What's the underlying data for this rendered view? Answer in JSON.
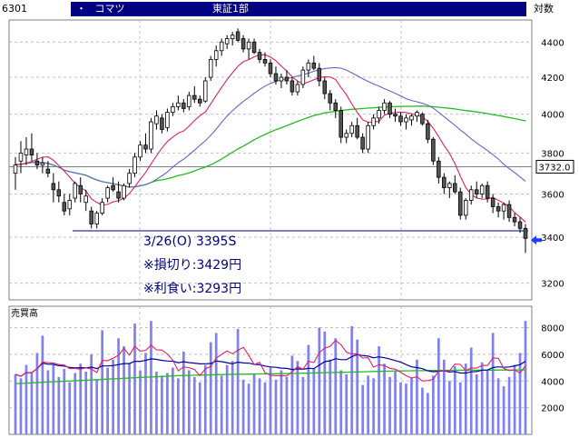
{
  "header": {
    "code": "6301",
    "bullet": "・",
    "name": "コマツ",
    "market": "東証1部",
    "scale": "対数"
  },
  "price_panel": {
    "current_price_label": "3732.0",
    "annotation_lines": [
      "3/26(O) 3395S",
      "※損切り:3429円",
      "※利食い:3293円"
    ]
  },
  "volume_panel": {
    "title": "売買高"
  },
  "colors": {
    "ma_short": "#e0206a",
    "ma_mid": "#6464c8",
    "ma_long": "#22bb22",
    "support": "#000080",
    "arrow": "#1c3cff",
    "volume_bar": "#8080f0",
    "vol_ma_short": "#e0206a",
    "vol_ma_mid": "#0000a0",
    "vol_ma_long": "#22bb22"
  },
  "chart_data": [
    {
      "type": "candlestick",
      "title": "",
      "yscale": "log",
      "ylim": [
        3130,
        4530
      ],
      "yticks": [
        3200,
        3400,
        3600,
        3800,
        4000,
        4200,
        4400
      ],
      "support_level": 3429,
      "current_price": 3732,
      "entry_price": 3395,
      "ohlc": [
        [
          3700,
          3780,
          3620,
          3740
        ],
        [
          3760,
          3860,
          3700,
          3800
        ],
        [
          3790,
          3880,
          3740,
          3820
        ],
        [
          3820,
          3900,
          3760,
          3790
        ],
        [
          3760,
          3800,
          3720,
          3740
        ],
        [
          3740,
          3780,
          3700,
          3750
        ],
        [
          3720,
          3760,
          3680,
          3700
        ],
        [
          3650,
          3700,
          3560,
          3620
        ],
        [
          3620,
          3660,
          3560,
          3590
        ],
        [
          3560,
          3600,
          3500,
          3520
        ],
        [
          3530,
          3600,
          3500,
          3570
        ],
        [
          3580,
          3660,
          3560,
          3650
        ],
        [
          3640,
          3680,
          3560,
          3600
        ],
        [
          3560,
          3620,
          3520,
          3590
        ],
        [
          3520,
          3540,
          3440,
          3460
        ],
        [
          3460,
          3520,
          3440,
          3510
        ],
        [
          3510,
          3580,
          3500,
          3560
        ],
        [
          3580,
          3640,
          3560,
          3630
        ],
        [
          3640,
          3680,
          3610,
          3620
        ],
        [
          3610,
          3660,
          3560,
          3580
        ],
        [
          3580,
          3650,
          3570,
          3640
        ],
        [
          3650,
          3720,
          3630,
          3700
        ],
        [
          3700,
          3800,
          3680,
          3780
        ],
        [
          3780,
          3860,
          3760,
          3840
        ],
        [
          3840,
          3900,
          3800,
          3820
        ],
        [
          3820,
          3980,
          3800,
          3960
        ],
        [
          3950,
          4020,
          3920,
          3990
        ],
        [
          3980,
          4000,
          3900,
          3920
        ],
        [
          3930,
          4030,
          3910,
          4010
        ],
        [
          4010,
          4060,
          3990,
          4040
        ],
        [
          4040,
          4100,
          4020,
          4060
        ],
        [
          4060,
          4080,
          4010,
          4030
        ],
        [
          4040,
          4120,
          4020,
          4100
        ],
        [
          4100,
          4150,
          4060,
          4080
        ],
        [
          4080,
          4100,
          4040,
          4060
        ],
        [
          4070,
          4200,
          4060,
          4180
        ],
        [
          4200,
          4320,
          4180,
          4300
        ],
        [
          4300,
          4380,
          4260,
          4350
        ],
        [
          4350,
          4420,
          4320,
          4400
        ],
        [
          4390,
          4440,
          4360,
          4420
        ],
        [
          4420,
          4460,
          4380,
          4440
        ],
        [
          4460,
          4480,
          4400,
          4410
        ],
        [
          4420,
          4440,
          4340,
          4360
        ],
        [
          4360,
          4420,
          4300,
          4400
        ],
        [
          4400,
          4420,
          4330,
          4340
        ],
        [
          4340,
          4360,
          4280,
          4300
        ],
        [
          4300,
          4340,
          4260,
          4280
        ],
        [
          4280,
          4300,
          4200,
          4220
        ],
        [
          4220,
          4260,
          4160,
          4180
        ],
        [
          4180,
          4220,
          4140,
          4200
        ],
        [
          4200,
          4240,
          4160,
          4180
        ],
        [
          4180,
          4200,
          4100,
          4120
        ],
        [
          4120,
          4180,
          4100,
          4160
        ],
        [
          4160,
          4260,
          4140,
          4240
        ],
        [
          4240,
          4300,
          4200,
          4280
        ],
        [
          4280,
          4320,
          4240,
          4250
        ],
        [
          4250,
          4280,
          4150,
          4180
        ],
        [
          4180,
          4200,
          4080,
          4110
        ],
        [
          4110,
          4130,
          4020,
          4060
        ],
        [
          4060,
          4080,
          3980,
          4020
        ],
        [
          4020,
          4040,
          3850,
          3880
        ],
        [
          3880,
          3920,
          3850,
          3900
        ],
        [
          3900,
          3960,
          3880,
          3940
        ],
        [
          3940,
          3980,
          3870,
          3880
        ],
        [
          3880,
          3900,
          3800,
          3820
        ],
        [
          3820,
          3960,
          3800,
          3940
        ],
        [
          3940,
          4000,
          3920,
          3980
        ],
        [
          3980,
          4040,
          3950,
          4020
        ],
        [
          4020,
          4080,
          4000,
          4060
        ],
        [
          4060,
          4070,
          3980,
          4000
        ],
        [
          4000,
          4030,
          3960,
          3990
        ],
        [
          3990,
          4010,
          3940,
          3960
        ],
        [
          3960,
          4000,
          3920,
          3980
        ],
        [
          3970,
          4000,
          3940,
          3990
        ],
        [
          3990,
          4020,
          3960,
          4010
        ],
        [
          4000,
          4010,
          3940,
          3950
        ],
        [
          3950,
          3970,
          3850,
          3870
        ],
        [
          3870,
          3880,
          3740,
          3760
        ],
        [
          3760,
          3780,
          3650,
          3680
        ],
        [
          3680,
          3700,
          3600,
          3630
        ],
        [
          3630,
          3660,
          3580,
          3650
        ],
        [
          3650,
          3690,
          3600,
          3610
        ],
        [
          3610,
          3630,
          3480,
          3500
        ],
        [
          3500,
          3580,
          3480,
          3570
        ],
        [
          3570,
          3640,
          3550,
          3620
        ],
        [
          3620,
          3660,
          3580,
          3600
        ],
        [
          3600,
          3650,
          3580,
          3640
        ],
        [
          3640,
          3660,
          3560,
          3580
        ],
        [
          3580,
          3600,
          3510,
          3540
        ],
        [
          3540,
          3560,
          3490,
          3520
        ],
        [
          3520,
          3560,
          3480,
          3550
        ],
        [
          3550,
          3570,
          3470,
          3490
        ],
        [
          3490,
          3510,
          3450,
          3470
        ],
        [
          3470,
          3490,
          3420,
          3440
        ],
        [
          3440,
          3460,
          3330,
          3395
        ]
      ],
      "ma_short": [
        3742,
        3744,
        3749,
        3758,
        3769,
        3779,
        3781,
        3764,
        3738,
        3710,
        3681,
        3650,
        3632,
        3614,
        3577,
        3560,
        3547,
        3551,
        3563,
        3568,
        3580,
        3602,
        3634,
        3670,
        3704,
        3746,
        3786,
        3825,
        3858,
        3881,
        3901,
        3912,
        3937,
        3967,
        3992,
        4012,
        4055,
        4100,
        4144,
        4187,
        4225,
        4261,
        4287,
        4299,
        4315,
        4325,
        4327,
        4314,
        4293,
        4262,
        4235,
        4202,
        4179,
        4163,
        4174,
        4186,
        4198,
        4203,
        4201,
        4188,
        4144,
        4104,
        4054,
        4009,
        3971,
        3958,
        3959,
        3962,
        3995,
        4004,
        4009,
        4011,
        4009,
        4002,
        3995,
        3986,
        3962,
        3926,
        3884,
        3838,
        3798,
        3747,
        3685,
        3630,
        3597,
        3581,
        3575,
        3576,
        3584,
        3570,
        3556,
        3541,
        3512,
        3492,
        3469
      ],
      "ma_mid": [
        3742,
        3744,
        3749,
        3753,
        3753,
        3752,
        3749,
        3740,
        3729,
        3715,
        3707,
        3702,
        3696,
        3690,
        3678,
        3667,
        3659,
        3654,
        3649,
        3644,
        3638,
        3633,
        3634,
        3639,
        3645,
        3655,
        3670,
        3687,
        3706,
        3730,
        3752,
        3769,
        3791,
        3814,
        3839,
        3862,
        3890,
        3922,
        3957,
        3990,
        4018,
        4044,
        4068,
        4089,
        4112,
        4133,
        4151,
        4166,
        4177,
        4185,
        4192,
        4199,
        4207,
        4214,
        4223,
        4233,
        4242,
        4249,
        4252,
        4254,
        4251,
        4240,
        4225,
        4208,
        4192,
        4177,
        4163,
        4151,
        4137,
        4125,
        4112,
        4098,
        4083,
        4073,
        4066,
        4058,
        4048,
        4032,
        4010,
        3987,
        3964,
        3941,
        3917,
        3896,
        3872,
        3851,
        3831,
        3812,
        3792,
        3770,
        3744,
        3723,
        3703,
        3682,
        3661
      ],
      "ma_long": [
        3742,
        3744,
        3749,
        3753,
        3753,
        3752,
        3749,
        3740,
        3729,
        3715,
        3707,
        3702,
        3696,
        3690,
        3678,
        3667,
        3659,
        3654,
        3649,
        3644,
        3638,
        3633,
        3634,
        3639,
        3645,
        3655,
        3664,
        3668,
        3673,
        3680,
        3689,
        3694,
        3702,
        3711,
        3722,
        3730,
        3741,
        3755,
        3770,
        3787,
        3804,
        3820,
        3835,
        3851,
        3867,
        3881,
        3894,
        3907,
        3919,
        3929,
        3940,
        3951,
        3962,
        3973,
        3983,
        3993,
        4000,
        4007,
        4011,
        4016,
        4019,
        4023,
        4026,
        4028,
        4030,
        4032,
        4034,
        4036,
        4038,
        4040,
        4040,
        4041,
        4042,
        4042,
        4043,
        4043,
        4042,
        4040,
        4037,
        4034,
        4031,
        4028,
        4023,
        4019,
        4016,
        4012,
        4008,
        4003,
        3998,
        3993,
        3988,
        3982,
        3977,
        3971,
        3965
      ]
    },
    {
      "type": "bar",
      "title": "売買高",
      "ylim": [
        0,
        9600
      ],
      "yticks": [
        2000,
        4000,
        6000,
        8000
      ],
      "values": [
        4500,
        4200,
        5200,
        4600,
        6100,
        7400,
        4800,
        5200,
        4300,
        4900,
        3900,
        4600,
        5300,
        4700,
        6000,
        4100,
        7800,
        5000,
        5600,
        7200,
        6600,
        5300,
        8300,
        4800,
        6100,
        8500,
        4700,
        4400,
        4600,
        5000,
        4200,
        6200,
        4800,
        4300,
        3900,
        5200,
        6900,
        7600,
        4400,
        5200,
        5500,
        7900,
        4100,
        3800,
        4500,
        4200,
        3900,
        5000,
        4100,
        4800,
        4300,
        5900,
        5500,
        4300,
        6700,
        4900,
        8000,
        7700,
        5600,
        7200,
        4800,
        4500,
        8100,
        7100,
        3700,
        4400,
        4200,
        6600,
        5300,
        4300,
        4700,
        3900,
        3800,
        4200,
        5600,
        3500,
        3100,
        4400,
        7200,
        5600,
        4000,
        5100,
        3900,
        5300,
        6500,
        4500,
        5400,
        4800,
        7600,
        4200,
        3600,
        4300,
        5200,
        6100,
        8500
      ],
      "ma_short": [
        4500,
        4350,
        4633,
        4625,
        4920,
        5413,
        5371,
        5350,
        5233,
        5200,
        4920,
        4940,
        4880,
        4980,
        4900,
        4640,
        5540,
        5520,
        5700,
        5940,
        6440,
        5940,
        6600,
        6240,
        6300,
        6680,
        6340,
        6320,
        6020,
        5560,
        4760,
        5060,
        5000,
        4860,
        4400,
        4920,
        5080,
        5720,
        6000,
        6260,
        6040,
        6300,
        6520,
        5920,
        5220,
        5400,
        4620,
        4440,
        4400,
        4400,
        4380,
        4680,
        5080,
        4880,
        5480,
        5380,
        6120,
        6460,
        6600,
        7040,
        6720,
        6160,
        6020,
        6040,
        5720,
        5740,
        5030,
        5220,
        5150,
        4950,
        4890,
        4650,
        4400,
        4220,
        4320,
        4000,
        4040,
        4120,
        4760,
        4760,
        4760,
        5260,
        5240,
        4780,
        4960,
        4960,
        5160,
        5160,
        5720,
        5700,
        4940,
        4780,
        4820,
        4600,
        5140
      ],
      "ma_mid": [
        4500,
        4350,
        4633,
        4625,
        4920,
        5333,
        5257,
        5250,
        5144,
        5120,
        5010,
        4977,
        5000,
        4986,
        5040,
        4931,
        5129,
        5131,
        5157,
        5231,
        5303,
        5303,
        5476,
        5471,
        5539,
        5660,
        5617,
        5540,
        5497,
        5480,
        5369,
        5437,
        5380,
        5340,
        5280,
        5287,
        5313,
        5493,
        5447,
        5371,
        5293,
        5411,
        5349,
        5337,
        5246,
        5218,
        5123,
        5051,
        5024,
        4964,
        4944,
        4859,
        4909,
        4876,
        4949,
        4921,
        5190,
        5444,
        5516,
        5669,
        5600,
        5597,
        5829,
        5976,
        5906,
        5859,
        5739,
        5808,
        5741,
        5643,
        5531,
        5418,
        5226,
        5056,
        5004,
        4922,
        4766,
        4693,
        4733,
        4757,
        4669,
        4713,
        4594,
        4598,
        4681,
        4706,
        4814,
        4820,
        5006,
        5056,
        5024,
        5051,
        5131,
        5221,
        5480
      ],
      "ma_long": [
        3800,
        3820,
        3840,
        3860,
        3880,
        3900,
        3920,
        3940,
        3960,
        3980,
        4000,
        4020,
        4040,
        4060,
        4080,
        4100,
        4120,
        4140,
        4160,
        4180,
        4200,
        4220,
        4240,
        4260,
        4280,
        4300,
        4320,
        4340,
        4360,
        4380,
        4400,
        4410,
        4420,
        4430,
        4440,
        4450,
        4460,
        4470,
        4480,
        4490,
        4500,
        4505,
        4510,
        4515,
        4520,
        4525,
        4530,
        4535,
        4540,
        4545,
        4550,
        4560,
        4570,
        4580,
        4590,
        4600,
        4610,
        4620,
        4630,
        4640,
        4650,
        4660,
        4670,
        4680,
        4690,
        4700,
        4710,
        4720,
        4730,
        4740,
        4750,
        4755,
        4760,
        4765,
        4770,
        4775,
        4780,
        4785,
        4790,
        4795,
        4800,
        4802,
        4804,
        4806,
        4808,
        4810,
        4812,
        4814,
        4816,
        4818,
        4820,
        4822,
        4824,
        4826,
        4828
      ]
    }
  ]
}
